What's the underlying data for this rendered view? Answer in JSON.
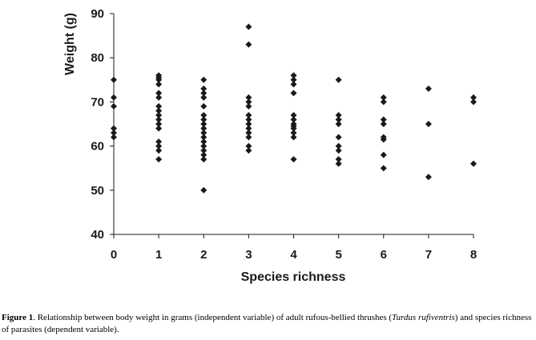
{
  "chart_data": {
    "type": "scatter",
    "title": "",
    "xlabel": "Species richness",
    "ylabel": "Weight (g)",
    "xlim": [
      0,
      8
    ],
    "ylim": [
      40,
      90
    ],
    "xticks": [
      0,
      1,
      2,
      3,
      4,
      5,
      6,
      7,
      8
    ],
    "yticks": [
      40,
      50,
      60,
      70,
      80,
      90
    ],
    "grid": false,
    "marker": "diamond",
    "color": "#1a1a1a",
    "points": [
      [
        0,
        75
      ],
      [
        0,
        71
      ],
      [
        0,
        69
      ],
      [
        0,
        64
      ],
      [
        0,
        63
      ],
      [
        0,
        62
      ],
      [
        1,
        76
      ],
      [
        1,
        75.5
      ],
      [
        1,
        75
      ],
      [
        1,
        74
      ],
      [
        1,
        72
      ],
      [
        1,
        71
      ],
      [
        1,
        69
      ],
      [
        1,
        68
      ],
      [
        1,
        67
      ],
      [
        1,
        66
      ],
      [
        1,
        65
      ],
      [
        1,
        64
      ],
      [
        1,
        61
      ],
      [
        1,
        60
      ],
      [
        1,
        59
      ],
      [
        1,
        57
      ],
      [
        2,
        75
      ],
      [
        2,
        73
      ],
      [
        2,
        72
      ],
      [
        2,
        71
      ],
      [
        2,
        69
      ],
      [
        2,
        67
      ],
      [
        2,
        66
      ],
      [
        2,
        65
      ],
      [
        2,
        64
      ],
      [
        2,
        63
      ],
      [
        2,
        62
      ],
      [
        2,
        61
      ],
      [
        2,
        60
      ],
      [
        2,
        59
      ],
      [
        2,
        58
      ],
      [
        2,
        57
      ],
      [
        2,
        50
      ],
      [
        3,
        87
      ],
      [
        3,
        83
      ],
      [
        3,
        71
      ],
      [
        3,
        70
      ],
      [
        3,
        69
      ],
      [
        3,
        67
      ],
      [
        3,
        66
      ],
      [
        3,
        65
      ],
      [
        3,
        64
      ],
      [
        3,
        63
      ],
      [
        3,
        62
      ],
      [
        3,
        60
      ],
      [
        3,
        59
      ],
      [
        4,
        76
      ],
      [
        4,
        75
      ],
      [
        4,
        74
      ],
      [
        4,
        72
      ],
      [
        4,
        67
      ],
      [
        4,
        66
      ],
      [
        4,
        65
      ],
      [
        4,
        64.5
      ],
      [
        4,
        64
      ],
      [
        4,
        63
      ],
      [
        4,
        62
      ],
      [
        4,
        57
      ],
      [
        5,
        75
      ],
      [
        5,
        67
      ],
      [
        5,
        66
      ],
      [
        5,
        65
      ],
      [
        5,
        62
      ],
      [
        5,
        60
      ],
      [
        5,
        59
      ],
      [
        5,
        57
      ],
      [
        5,
        56
      ],
      [
        6,
        71
      ],
      [
        6,
        70
      ],
      [
        6,
        66
      ],
      [
        6,
        65
      ],
      [
        6,
        62
      ],
      [
        6,
        61.5
      ],
      [
        6,
        58
      ],
      [
        6,
        55
      ],
      [
        7,
        73
      ],
      [
        7,
        65
      ],
      [
        7,
        53
      ],
      [
        8,
        71
      ],
      [
        8,
        70
      ],
      [
        8,
        56
      ]
    ]
  },
  "caption": {
    "label": "Figure 1",
    "text_1": ". Relationship between body weight in grams (independent variable) of adult rufous-bellied thrushes (",
    "species": "Turdus rufiventris",
    "text_2": ") and species richness of parasites (dependent variable)."
  }
}
